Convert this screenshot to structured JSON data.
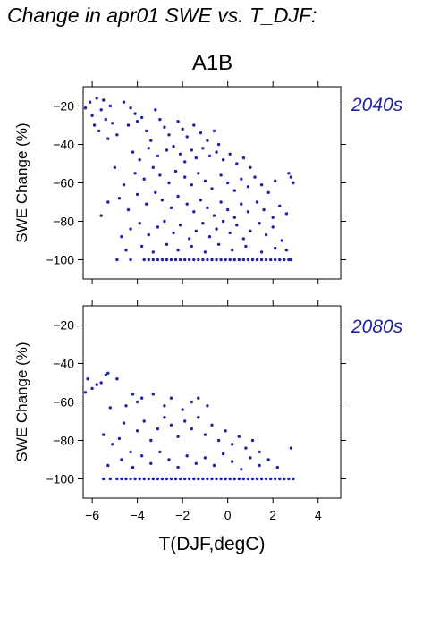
{
  "title": "Change in apr01 SWE vs. T_DJF:",
  "scenario": "A1B",
  "colors": {
    "points": "#1f24a8",
    "axis": "#000000"
  },
  "chart_data": [
    {
      "type": "scatter",
      "period": "2040s",
      "ylabel": "SWE Change (%)",
      "xlabel": "",
      "xlim": [
        -6.4,
        5
      ],
      "ylim": [
        -110,
        -10
      ],
      "xticks": [
        -6,
        -4,
        -2,
        0,
        2,
        4
      ],
      "yticks": [
        -20,
        -40,
        -60,
        -80,
        -100
      ],
      "show_x_tick_labels": false,
      "points": [
        [
          -6.3,
          -21
        ],
        [
          -6.1,
          -18
        ],
        [
          -5.8,
          -16
        ],
        [
          -5.5,
          -17
        ],
        [
          -5.2,
          -20
        ],
        [
          -5.6,
          -22
        ],
        [
          -6.0,
          -25
        ],
        [
          -5.4,
          -27
        ],
        [
          -5.1,
          -29
        ],
        [
          -5.9,
          -30
        ],
        [
          -5.7,
          -33
        ],
        [
          -5.3,
          -37
        ],
        [
          -4.9,
          -35
        ],
        [
          -4.6,
          -18
        ],
        [
          -4.3,
          -21
        ],
        [
          -4.1,
          -24
        ],
        [
          -4.4,
          -30
        ],
        [
          -4.0,
          -28
        ],
        [
          -3.8,
          -26
        ],
        [
          -3.6,
          -33
        ],
        [
          -3.2,
          -22
        ],
        [
          -3.0,
          -27
        ],
        [
          -2.8,
          -31
        ],
        [
          -2.6,
          -35
        ],
        [
          -3.4,
          -38
        ],
        [
          -2.2,
          -28
        ],
        [
          -2.0,
          -32
        ],
        [
          -1.8,
          -36
        ],
        [
          -1.5,
          -30
        ],
        [
          -1.2,
          -34
        ],
        [
          -0.9,
          -38
        ],
        [
          -0.6,
          -33
        ],
        [
          -0.4,
          -40
        ],
        [
          -4.2,
          -44
        ],
        [
          -3.9,
          -48
        ],
        [
          -3.5,
          -42
        ],
        [
          -3.1,
          -46
        ],
        [
          -2.7,
          -43
        ],
        [
          -2.4,
          -41
        ],
        [
          -2.1,
          -45
        ],
        [
          -1.9,
          -49
        ],
        [
          -1.6,
          -43
        ],
        [
          -1.4,
          -47
        ],
        [
          -1.1,
          -42
        ],
        [
          -0.8,
          -46
        ],
        [
          -0.5,
          -44
        ],
        [
          -0.2,
          -48
        ],
        [
          0.1,
          -45
        ],
        [
          0.4,
          -50
        ],
        [
          0.7,
          -47
        ],
        [
          1.0,
          -52
        ],
        [
          -4.1,
          -55
        ],
        [
          -3.7,
          -58
        ],
        [
          -3.3,
          -52
        ],
        [
          -3.0,
          -56
        ],
        [
          -2.6,
          -60
        ],
        [
          -2.3,
          -54
        ],
        [
          -1.9,
          -57
        ],
        [
          -1.6,
          -61
        ],
        [
          -1.3,
          -55
        ],
        [
          -1.0,
          -59
        ],
        [
          -0.7,
          -63
        ],
        [
          -0.3,
          -56
        ],
        [
          0.0,
          -60
        ],
        [
          0.3,
          -64
        ],
        [
          0.6,
          -58
        ],
        [
          0.9,
          -62
        ],
        [
          1.2,
          -57
        ],
        [
          1.5,
          -61
        ],
        [
          1.8,
          -65
        ],
        [
          2.1,
          -59
        ],
        [
          2.7,
          -55
        ],
        [
          2.8,
          -57
        ],
        [
          2.9,
          -60
        ],
        [
          -5.0,
          -52
        ],
        [
          -4.6,
          -61
        ],
        [
          -5.3,
          -70
        ],
        [
          -5.6,
          -77
        ],
        [
          -4.8,
          -68
        ],
        [
          -4.4,
          -74
        ],
        [
          -4.0,
          -66
        ],
        [
          -3.6,
          -71
        ],
        [
          -3.2,
          -65
        ],
        [
          -2.9,
          -69
        ],
        [
          -2.5,
          -73
        ],
        [
          -2.2,
          -67
        ],
        [
          -1.8,
          -71
        ],
        [
          -1.5,
          -75
        ],
        [
          -1.2,
          -69
        ],
        [
          -0.9,
          -73
        ],
        [
          -0.6,
          -77
        ],
        [
          -0.3,
          -70
        ],
        [
          0.0,
          -74
        ],
        [
          0.3,
          -78
        ],
        [
          0.6,
          -71
        ],
        [
          0.9,
          -75
        ],
        [
          1.3,
          -70
        ],
        [
          1.6,
          -74
        ],
        [
          2.0,
          -78
        ],
        [
          2.3,
          -72
        ],
        [
          2.6,
          -76
        ],
        [
          -4.7,
          -88
        ],
        [
          -4.3,
          -84
        ],
        [
          -3.9,
          -81
        ],
        [
          -3.5,
          -87
        ],
        [
          -3.1,
          -83
        ],
        [
          -2.8,
          -80
        ],
        [
          -2.4,
          -86
        ],
        [
          -2.1,
          -82
        ],
        [
          -1.7,
          -89
        ],
        [
          -1.4,
          -85
        ],
        [
          -1.1,
          -81
        ],
        [
          -0.8,
          -88
        ],
        [
          -0.5,
          -84
        ],
        [
          -0.2,
          -80
        ],
        [
          0.1,
          -86
        ],
        [
          0.4,
          -82
        ],
        [
          0.7,
          -89
        ],
        [
          1.0,
          -85
        ],
        [
          1.4,
          -81
        ],
        [
          1.7,
          -87
        ],
        [
          2.0,
          -83
        ],
        [
          2.4,
          -90
        ],
        [
          -4.5,
          -95
        ],
        [
          -3.8,
          -93
        ],
        [
          -3.3,
          -96
        ],
        [
          -2.7,
          -92
        ],
        [
          -2.2,
          -95
        ],
        [
          -1.6,
          -93
        ],
        [
          -1.0,
          -96
        ],
        [
          -0.4,
          -92
        ],
        [
          0.2,
          -95
        ],
        [
          0.8,
          -93
        ],
        [
          1.5,
          -96
        ],
        [
          2.1,
          -94
        ],
        [
          2.6,
          -95
        ],
        [
          -4.9,
          -100
        ],
        [
          -4.3,
          -100
        ],
        [
          -3.7,
          -100
        ],
        [
          -3.5,
          -100
        ],
        [
          -3.3,
          -100
        ],
        [
          -3.1,
          -100
        ],
        [
          -2.9,
          -100
        ],
        [
          -2.7,
          -100
        ],
        [
          -2.5,
          -100
        ],
        [
          -2.3,
          -100
        ],
        [
          -2.1,
          -100
        ],
        [
          -1.9,
          -100
        ],
        [
          -1.7,
          -100
        ],
        [
          -1.5,
          -100
        ],
        [
          -1.3,
          -100
        ],
        [
          -1.1,
          -100
        ],
        [
          -0.9,
          -100
        ],
        [
          -0.7,
          -100
        ],
        [
          -0.5,
          -100
        ],
        [
          -0.3,
          -100
        ],
        [
          -0.1,
          -100
        ],
        [
          0.1,
          -100
        ],
        [
          0.3,
          -100
        ],
        [
          0.5,
          -100
        ],
        [
          0.7,
          -100
        ],
        [
          0.9,
          -100
        ],
        [
          1.1,
          -100
        ],
        [
          1.3,
          -100
        ],
        [
          1.5,
          -100
        ],
        [
          1.7,
          -100
        ],
        [
          1.9,
          -100
        ],
        [
          2.1,
          -100
        ],
        [
          2.3,
          -100
        ],
        [
          2.5,
          -100
        ],
        [
          2.7,
          -100
        ],
        [
          2.8,
          -100
        ]
      ]
    },
    {
      "type": "scatter",
      "period": "2080s",
      "ylabel": "SWE Change (%)",
      "xlabel": "T(DJF,degC)",
      "xlim": [
        -6.4,
        5
      ],
      "ylim": [
        -110,
        -10
      ],
      "xticks": [
        -6,
        -4,
        -2,
        0,
        2,
        4
      ],
      "yticks": [
        -20,
        -40,
        -60,
        -80,
        -100
      ],
      "show_x_tick_labels": true,
      "points": [
        [
          -6.3,
          -55
        ],
        [
          -6.2,
          -48
        ],
        [
          -6.0,
          -53
        ],
        [
          -5.8,
          -51
        ],
        [
          -5.6,
          -50
        ],
        [
          -5.4,
          -46
        ],
        [
          -5.3,
          -45
        ],
        [
          -4.9,
          -48
        ],
        [
          -5.2,
          -63
        ],
        [
          -4.5,
          -62
        ],
        [
          -4.2,
          -56
        ],
        [
          -4.0,
          -60
        ],
        [
          -3.8,
          -58
        ],
        [
          -3.3,
          -56
        ],
        [
          -2.8,
          -62
        ],
        [
          -2.5,
          -58
        ],
        [
          -2.0,
          -64
        ],
        [
          -1.6,
          -60
        ],
        [
          -1.3,
          -58
        ],
        [
          -0.9,
          -62
        ],
        [
          -5.5,
          -77
        ],
        [
          -5.1,
          -82
        ],
        [
          -4.8,
          -79
        ],
        [
          -4.6,
          -71
        ],
        [
          -4.3,
          -86
        ],
        [
          -4.0,
          -75
        ],
        [
          -3.7,
          -70
        ],
        [
          -3.4,
          -80
        ],
        [
          -3.1,
          -74
        ],
        [
          -2.8,
          -68
        ],
        [
          -2.5,
          -72
        ],
        [
          -2.2,
          -78
        ],
        [
          -1.9,
          -70
        ],
        [
          -1.6,
          -74
        ],
        [
          -1.3,
          -68
        ],
        [
          -1.0,
          -77
        ],
        [
          -0.7,
          -72
        ],
        [
          -0.4,
          -80
        ],
        [
          -0.1,
          -75
        ],
        [
          0.2,
          -82
        ],
        [
          0.5,
          -78
        ],
        [
          0.8,
          -84
        ],
        [
          1.1,
          -80
        ],
        [
          1.4,
          -86
        ],
        [
          -5.3,
          -93
        ],
        [
          -4.7,
          -90
        ],
        [
          -4.2,
          -94
        ],
        [
          -3.8,
          -88
        ],
        [
          -3.4,
          -92
        ],
        [
          -3.0,
          -86
        ],
        [
          -2.6,
          -90
        ],
        [
          -2.2,
          -94
        ],
        [
          -1.8,
          -88
        ],
        [
          -1.4,
          -92
        ],
        [
          -1.0,
          -89
        ],
        [
          -0.6,
          -93
        ],
        [
          -0.2,
          -87
        ],
        [
          0.2,
          -91
        ],
        [
          0.6,
          -95
        ],
        [
          1.0,
          -89
        ],
        [
          1.4,
          -93
        ],
        [
          1.8,
          -90
        ],
        [
          2.2,
          -94
        ],
        [
          2.8,
          -84
        ],
        [
          -5.5,
          -100
        ],
        [
          -5.2,
          -100
        ],
        [
          -4.9,
          -100
        ],
        [
          -4.7,
          -100
        ],
        [
          -4.5,
          -100
        ],
        [
          -4.3,
          -100
        ],
        [
          -4.1,
          -100
        ],
        [
          -3.9,
          -100
        ],
        [
          -3.7,
          -100
        ],
        [
          -3.5,
          -100
        ],
        [
          -3.3,
          -100
        ],
        [
          -3.1,
          -100
        ],
        [
          -2.9,
          -100
        ],
        [
          -2.7,
          -100
        ],
        [
          -2.5,
          -100
        ],
        [
          -2.3,
          -100
        ],
        [
          -2.1,
          -100
        ],
        [
          -1.9,
          -100
        ],
        [
          -1.7,
          -100
        ],
        [
          -1.5,
          -100
        ],
        [
          -1.3,
          -100
        ],
        [
          -1.1,
          -100
        ],
        [
          -0.9,
          -100
        ],
        [
          -0.7,
          -100
        ],
        [
          -0.5,
          -100
        ],
        [
          -0.3,
          -100
        ],
        [
          -0.1,
          -100
        ],
        [
          0.1,
          -100
        ],
        [
          0.3,
          -100
        ],
        [
          0.5,
          -100
        ],
        [
          0.7,
          -100
        ],
        [
          0.9,
          -100
        ],
        [
          1.1,
          -100
        ],
        [
          1.3,
          -100
        ],
        [
          1.5,
          -100
        ],
        [
          1.7,
          -100
        ],
        [
          1.9,
          -100
        ],
        [
          2.1,
          -100
        ],
        [
          2.3,
          -100
        ],
        [
          2.5,
          -100
        ],
        [
          2.7,
          -100
        ],
        [
          2.9,
          -100
        ]
      ]
    }
  ]
}
